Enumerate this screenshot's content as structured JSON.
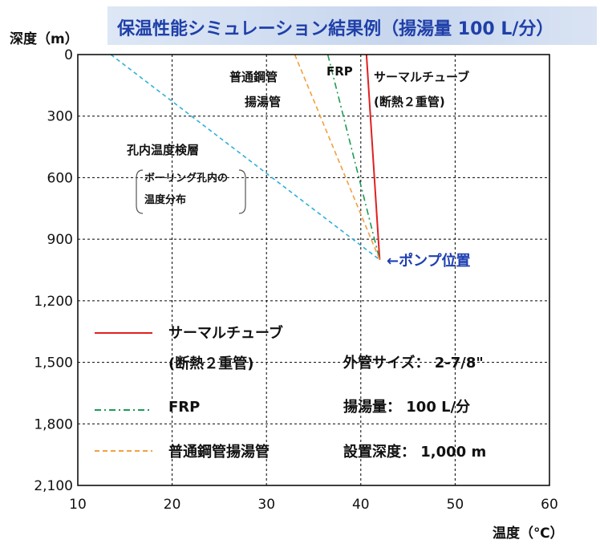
{
  "title": "保温性能シミュレーション結果例（揚湯量 100 L/分）",
  "colors": {
    "thermal": "#e02020",
    "frp": "#1f9a55",
    "steel": "#f0a040",
    "borehole": "#2fb0d8",
    "pump": "#1f3fb0",
    "note": "#1a6fd0"
  },
  "chart_data": {
    "type": "line",
    "xlabel": "温度（℃）",
    "ylabel": "深度（m）",
    "xlim": [
      10,
      60
    ],
    "ylim": [
      0,
      2100
    ],
    "y_inverted": true,
    "grid": true,
    "xticks": [
      "10",
      "20",
      "30",
      "40",
      "50",
      "60"
    ],
    "yticks": [
      "0",
      "300",
      "600",
      "900",
      "1,200",
      "1,500",
      "1,800",
      "2,100"
    ],
    "series": [
      {
        "name": "サーマルチューブ (断熱２重管)",
        "style": "solid",
        "x": [
          40.6,
          42.0
        ],
        "y": [
          0,
          1000
        ]
      },
      {
        "name": "FRP",
        "style": "dash-dot",
        "x": [
          36.5,
          42.0
        ],
        "y": [
          0,
          1000
        ]
      },
      {
        "name": "普通鋼管揚湯管",
        "style": "dashed",
        "x": [
          33.0,
          42.0
        ],
        "y": [
          0,
          1000
        ]
      },
      {
        "name": "孔内温度検層",
        "style": "dashed",
        "x": [
          13.5,
          42.0
        ],
        "y": [
          0,
          1000
        ]
      }
    ],
    "annotations": {
      "steel_line1": "普通鋼管",
      "steel_line2": "揚湯管",
      "frp": "FRP",
      "thermal_line1": "サーマルチューブ",
      "thermal_line2": "(断熱２重管)",
      "borehole_title": "孔内温度検層",
      "borehole_note1": "ボーリング孔内の",
      "borehole_note2": "温度分布",
      "pump": "←ポンプ位置"
    },
    "legend": {
      "placement": "bottom-left",
      "items": [
        {
          "line1": "サーマルチューブ",
          "line2": "(断熱２重管)"
        },
        {
          "line1": "FRP"
        },
        {
          "line1": "普通鋼管揚湯管"
        }
      ]
    },
    "conditions": [
      "外管サイズ： 2-7/8\"",
      "揚湯量： 100 L/分",
      "設置深度： 1,000 m"
    ]
  }
}
